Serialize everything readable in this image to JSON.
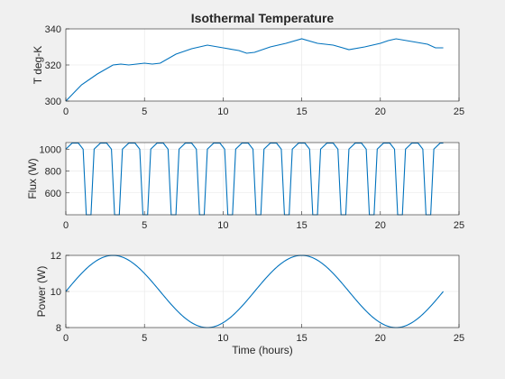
{
  "figure": {
    "background": "#f0f0f0",
    "axes_background": "#ffffff",
    "axis_color": "#262626",
    "line_color": "#0072bd",
    "grid_color": "#e6e6e6"
  },
  "chart_data": [
    {
      "type": "line",
      "title": "Isothermal Temperature",
      "xlabel": "",
      "ylabel": "T deg-K",
      "xlim": [
        0,
        25
      ],
      "ylim": [
        300,
        340
      ],
      "xticks": [
        0,
        5,
        10,
        15,
        20,
        25
      ],
      "yticks": [
        300,
        320,
        340
      ],
      "grid": true,
      "series": [
        {
          "x": [
            0,
            1,
            2,
            3,
            3.5,
            4,
            5,
            5.5,
            6,
            7,
            8,
            9,
            10,
            11,
            11.5,
            12,
            13,
            14,
            15,
            16,
            17,
            18,
            19,
            20,
            20.5,
            21,
            22,
            23,
            23.5,
            24
          ],
          "y": [
            300,
            309,
            315,
            320,
            320.5,
            320,
            321,
            320.5,
            321,
            326,
            329,
            331,
            329.5,
            328,
            326.5,
            327,
            330,
            332,
            334.5,
            332,
            331,
            328.5,
            330,
            332,
            333.5,
            334.5,
            333,
            331.5,
            329.5,
            329.5
          ]
        }
      ]
    },
    {
      "type": "line",
      "title": "",
      "xlabel": "",
      "ylabel": "Flux (W)",
      "xlim": [
        0,
        25
      ],
      "ylim": [
        400,
        1060
      ],
      "xticks": [
        0,
        5,
        10,
        15,
        20,
        25
      ],
      "yticks": [
        600,
        800,
        1000
      ],
      "grid": true,
      "series": [
        {
          "x": [
            0,
            0.4,
            0.8,
            1.1,
            1.3,
            1.6,
            1.8,
            2.2,
            2.6,
            2.9,
            3.1,
            3.4,
            3.6,
            4.0,
            4.4,
            4.7,
            4.9,
            5.2,
            5.4,
            5.8,
            6.2,
            6.5,
            6.7,
            7.0,
            7.2,
            7.6,
            8.0,
            8.3,
            8.5,
            8.8,
            9.0,
            9.4,
            9.8,
            10.1,
            10.3,
            10.6,
            10.8,
            11.2,
            11.6,
            11.9,
            12.1,
            12.4,
            12.6,
            13.0,
            13.4,
            13.7,
            13.9,
            14.2,
            14.4,
            14.8,
            15.2,
            15.5,
            15.7,
            16.0,
            16.2,
            16.6,
            17.0,
            17.3,
            17.5,
            17.8,
            18.0,
            18.4,
            18.8,
            19.1,
            19.3,
            19.6,
            19.8,
            20.2,
            20.6,
            20.9,
            21.1,
            21.4,
            21.6,
            22.0,
            22.4,
            22.7,
            22.9,
            23.2,
            23.4,
            23.8,
            24.0
          ],
          "y": [
            1000,
            1055,
            1055,
            1000,
            400,
            400,
            1000,
            1055,
            1055,
            1000,
            400,
            400,
            1000,
            1055,
            1055,
            1000,
            400,
            400,
            1000,
            1055,
            1055,
            1000,
            400,
            400,
            1000,
            1055,
            1055,
            1000,
            400,
            400,
            1000,
            1055,
            1055,
            1000,
            400,
            400,
            1000,
            1055,
            1055,
            1000,
            400,
            400,
            1000,
            1055,
            1055,
            1000,
            400,
            400,
            1000,
            1055,
            1055,
            1000,
            400,
            400,
            1000,
            1055,
            1055,
            1000,
            400,
            400,
            1000,
            1055,
            1055,
            1000,
            400,
            400,
            1000,
            1055,
            1055,
            1000,
            400,
            400,
            1000,
            1055,
            1055,
            1000,
            400,
            400,
            1000,
            1055,
            1055
          ]
        }
      ]
    },
    {
      "type": "line",
      "title": "",
      "xlabel": "Time (hours)",
      "ylabel": "Power (W)",
      "xlim": [
        0,
        25
      ],
      "ylim": [
        8,
        12
      ],
      "xticks": [
        0,
        5,
        10,
        15,
        20,
        25
      ],
      "yticks": [
        8,
        10,
        12
      ],
      "grid": true,
      "series": [
        {
          "function": "10 + 2*sin(2*pi*x/12)",
          "x_start": 0,
          "x_end": 24
        }
      ]
    }
  ]
}
